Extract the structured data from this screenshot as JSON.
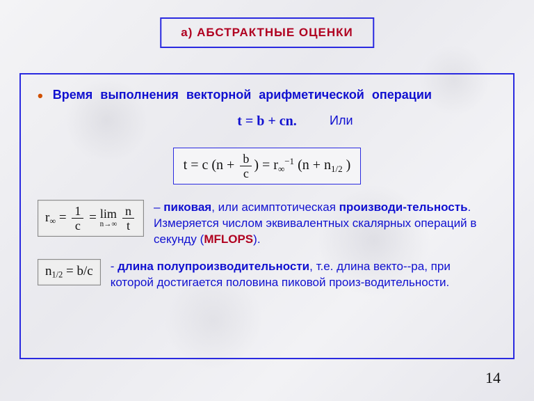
{
  "colors": {
    "border": "#2a2ae0",
    "text_blue": "#1010d0",
    "text_red": "#b00020",
    "bullet": "#d05000",
    "eq_bg_gray": "#efefef",
    "eq_bg_lightblue": "#f5f5f7"
  },
  "title": "а) АБСТРАКТНЫЕ  ОЦЕНКИ",
  "bullet": {
    "marker": "•",
    "text": "Время выполнения векторной арифметической операции"
  },
  "formula_main": "t = b + cn.",
  "formula_or": "Или",
  "eq_center": {
    "lhs": "t = c (n + ",
    "frac_num": "b",
    "frac_den": "c",
    "mid": ") = r",
    "r_sub": "∞",
    "r_sup": "−1",
    "rhs_open": " (n + n",
    "half_sub": "1/2",
    "rhs_close": " )"
  },
  "def1": {
    "eq": {
      "r": "r",
      "r_sub": "∞",
      "frac1_num": "1",
      "frac1_den": "c",
      "lim_top": "lim",
      "lim_bot": "n→∞",
      "frac2_num": "n",
      "frac2_den": "t"
    },
    "dash": "–",
    "lead_bold": "пиковая",
    "mid1": ", или асимптотическая ",
    "term": "производи-тельность",
    "tail1": " Измеряется числом эквивалентных скалярных операций в секунду (",
    "mflops": "MFLOPS",
    "tail2": ")."
  },
  "def2": {
    "eq": {
      "n": "n",
      "n_sub": "1/2",
      "rhs": " = b/c"
    },
    "dash": "-",
    "lead_bold": "длина полупроизводительности",
    "tail": ", т.е. длина векто--ра, при которой достигается половина пиковой произ-водительности."
  },
  "page_number": "14"
}
